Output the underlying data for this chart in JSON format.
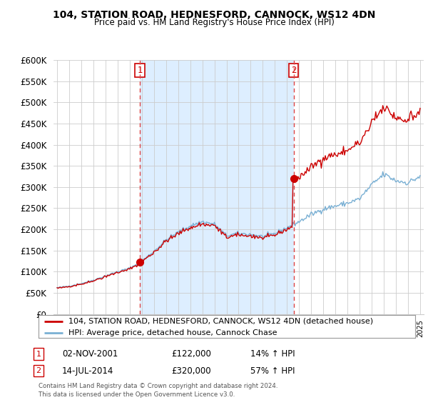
{
  "title": "104, STATION ROAD, HEDNESFORD, CANNOCK, WS12 4DN",
  "subtitle": "Price paid vs. HM Land Registry's House Price Index (HPI)",
  "legend_line1": "104, STATION ROAD, HEDNESFORD, CANNOCK, WS12 4DN (detached house)",
  "legend_line2": "HPI: Average price, detached house, Cannock Chase",
  "annotation1_date": "02-NOV-2001",
  "annotation1_price": "£122,000",
  "annotation1_pct": "14% ↑ HPI",
  "annotation2_date": "14-JUL-2014",
  "annotation2_price": "£320,000",
  "annotation2_pct": "57% ↑ HPI",
  "footer": "Contains HM Land Registry data © Crown copyright and database right 2024.\nThis data is licensed under the Open Government Licence v3.0.",
  "sale1_x": 2001.84,
  "sale1_y": 122000,
  "sale2_x": 2014.54,
  "sale2_y": 320000,
  "ylim": [
    0,
    600000
  ],
  "xlim_start": 1994.7,
  "xlim_end": 2025.3,
  "red_color": "#cc0000",
  "blue_color": "#7ab0d4",
  "shade_color": "#ddeeff",
  "background_color": "#ffffff",
  "grid_color": "#cccccc",
  "vline_color": "#dd4444"
}
